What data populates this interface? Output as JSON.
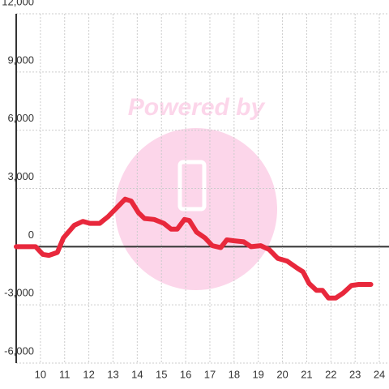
{
  "chart_data": {
    "type": "line",
    "watermark": "Powered by",
    "x": [
      9.0,
      9.8,
      10.1,
      10.35,
      10.7,
      10.95,
      11.4,
      11.75,
      12.05,
      12.45,
      12.8,
      13.15,
      13.5,
      13.75,
      14.05,
      14.3,
      14.7,
      15.1,
      15.4,
      15.65,
      15.95,
      16.15,
      16.45,
      16.8,
      17.1,
      17.45,
      17.7,
      18.0,
      18.4,
      18.7,
      19.1,
      19.45,
      19.8,
      20.2,
      20.6,
      20.85,
      21.1,
      21.4,
      21.65,
      21.9,
      22.2,
      22.5,
      22.85,
      23.15,
      23.65
    ],
    "series": [
      {
        "color": "#e8283c",
        "values": [
          0,
          0,
          -400,
          -450,
          -300,
          450,
          1100,
          1300,
          1200,
          1200,
          1550,
          2000,
          2450,
          2350,
          1750,
          1450,
          1400,
          1200,
          900,
          900,
          1400,
          1350,
          750,
          450,
          50,
          -50,
          350,
          300,
          250,
          0,
          50,
          -150,
          -600,
          -750,
          -1100,
          -1300,
          -1900,
          -2250,
          -2250,
          -2650,
          -2650,
          -2400,
          -2000,
          -1950,
          -1950
        ]
      }
    ],
    "xlim": [
      9,
      24.4
    ],
    "xticks": [
      10,
      11,
      12,
      13,
      14,
      15,
      16,
      17,
      18,
      19,
      20,
      21,
      22,
      23,
      24
    ],
    "ylim": [
      -6000,
      12000
    ],
    "yticks": [
      {
        "value": -6000,
        "label": "-6,000"
      },
      {
        "value": -3000,
        "label": "-3,000"
      },
      0,
      {
        "value": 3000,
        "label": "3,000"
      },
      {
        "value": 6000,
        "label": "6,000"
      },
      {
        "value": 9000,
        "label": "9,000"
      },
      {
        "value": 12000,
        "label": "12,000"
      }
    ],
    "grid": true
  }
}
